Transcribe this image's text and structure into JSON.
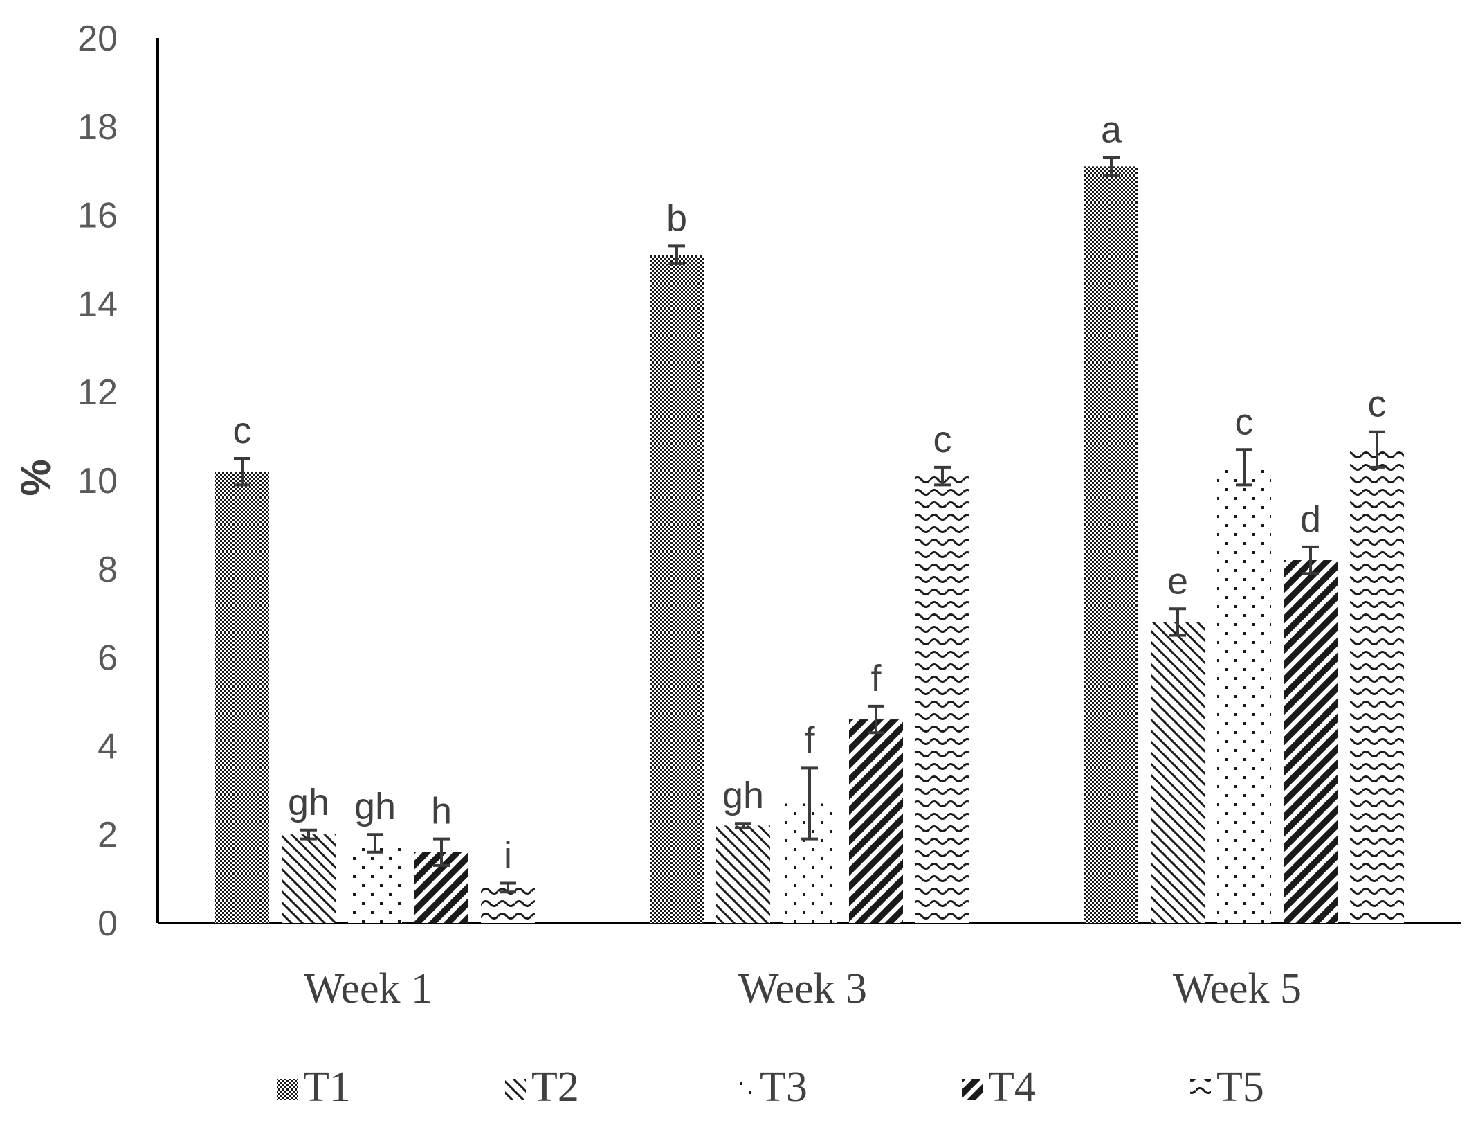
{
  "chart_data": {
    "type": "bar",
    "title": "",
    "xlabel": "",
    "ylabel": "%",
    "ylim": [
      0,
      20
    ],
    "yticks": [
      0,
      2,
      4,
      6,
      8,
      10,
      12,
      14,
      16,
      18,
      20
    ],
    "grid": false,
    "legend_position": "bottom",
    "categories": [
      "Week 1",
      "Week 3",
      "Week 5"
    ],
    "series": [
      {
        "name": "T1",
        "pattern": "dense-dots",
        "values": [
          10.2,
          15.1,
          17.1
        ],
        "errors": [
          0.3,
          0.2,
          0.2
        ],
        "letters": [
          "c",
          "b",
          "a"
        ]
      },
      {
        "name": "T2",
        "pattern": "diagonal-thin",
        "values": [
          2.0,
          2.2,
          6.8
        ],
        "errors": [
          0.1,
          0.05,
          0.3
        ],
        "letters": [
          "gh",
          "gh",
          "e"
        ]
      },
      {
        "name": "T3",
        "pattern": "sparse-dots",
        "values": [
          1.8,
          2.7,
          10.3
        ],
        "errors": [
          0.2,
          0.8,
          0.4
        ],
        "letters": [
          "gh",
          "f",
          "c"
        ]
      },
      {
        "name": "T4",
        "pattern": "diagonal-thick",
        "values": [
          1.6,
          4.6,
          8.2
        ],
        "errors": [
          0.3,
          0.3,
          0.3
        ],
        "letters": [
          "h",
          "f",
          "d"
        ]
      },
      {
        "name": "T5",
        "pattern": "wave",
        "values": [
          0.8,
          10.1,
          10.7
        ],
        "errors": [
          0.1,
          0.2,
          0.4
        ],
        "letters": [
          "i",
          "c",
          "c"
        ]
      }
    ]
  }
}
